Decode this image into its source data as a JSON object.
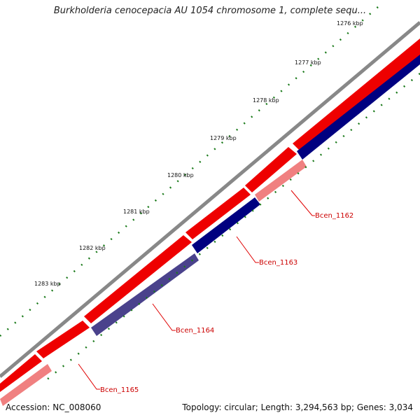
{
  "title": "Burkholderia cenocepacia AU 1054 chromosome 1, complete sequ...",
  "footer": {
    "accession": "Accession: NC_008060",
    "info": "Topology: circular; Length: 3,294,563 bp; Genes: 3,034"
  },
  "ticks": [
    "1276 kbp",
    "1277 kbp",
    "1278 kbp",
    "1279 kbp",
    "1280 kbp",
    "1281 kbp",
    "1282 kbp",
    "1283 kbp"
  ],
  "genes": [
    {
      "label": "Bcen_1162",
      "color": "#cc0000"
    },
    {
      "label": "Bcen_1163",
      "color": "#cc0000"
    },
    {
      "label": "Bcen_1164",
      "color": "#cc0000"
    },
    {
      "label": "Bcen_1165",
      "color": "#cc0000"
    }
  ],
  "colors": {
    "backbone": "#888888",
    "forward_cds": "#ee0000",
    "reverse_cds": "#000080",
    "forward_gene_light": "#f08080",
    "reverse_gene_light": "#4a428c",
    "tick_marks": "#1a7a1a"
  }
}
